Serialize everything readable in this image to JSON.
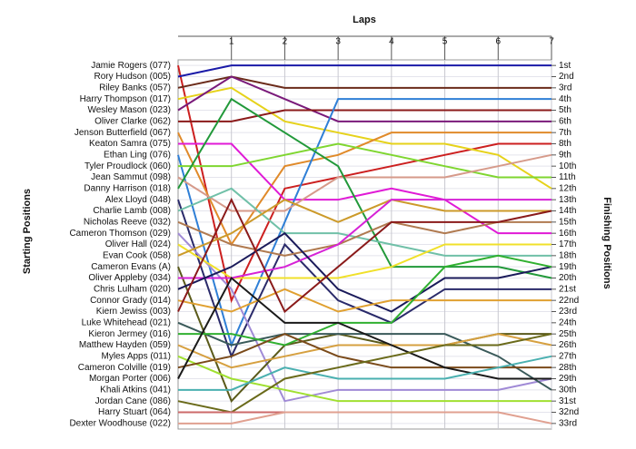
{
  "chart_data": {
    "type": "line",
    "x_label": "Laps",
    "y_label": "Starting Positions",
    "y2_label": "Finishing Positions",
    "x": [
      0,
      1,
      2,
      3,
      4,
      5,
      6,
      7
    ],
    "xlim": [
      0,
      7
    ],
    "xticks": [
      1,
      2,
      3,
      4,
      5,
      6,
      7
    ],
    "ylim": [
      0.5,
      33.5
    ],
    "inverted": true,
    "grid": true,
    "finishing_labels": [
      "1st",
      "2nd",
      "3rd",
      "4th",
      "5th",
      "6th",
      "7th",
      "8th",
      "9th",
      "10th",
      "11th",
      "12th",
      "13th",
      "14th",
      "15th",
      "16th",
      "17th",
      "18th",
      "19th",
      "20th",
      "21st",
      "22nd",
      "23rd",
      "24th",
      "25th",
      "26th",
      "27th",
      "28th",
      "29th",
      "30th",
      "31st",
      "32nd",
      "33rd"
    ],
    "series": [
      {
        "name": "Jamie Rogers (077)",
        "color": "#cc1f1f",
        "values": [
          1,
          22,
          12,
          11,
          10,
          9,
          8,
          8
        ]
      },
      {
        "name": "Rory Hudson (005)",
        "color": "#1a1aa8",
        "values": [
          2,
          1,
          1,
          1,
          1,
          1,
          1,
          1
        ]
      },
      {
        "name": "Riley Banks (057)",
        "color": "#6b2b1a",
        "values": [
          3,
          2,
          3,
          3,
          3,
          3,
          3,
          3
        ]
      },
      {
        "name": "Harry Thompson (017)",
        "color": "#e6d21a",
        "values": [
          4,
          3,
          6,
          7,
          8,
          8,
          9,
          12
        ]
      },
      {
        "name": "Wesley Mason (023)",
        "color": "#7a1a7a",
        "values": [
          5,
          2,
          4,
          6,
          6,
          6,
          6,
          6
        ]
      },
      {
        "name": "Oliver Clarke (062)",
        "color": "#8b1a1a",
        "values": [
          6,
          6,
          5,
          5,
          5,
          5,
          5,
          5
        ]
      },
      {
        "name": "Jenson Butterfield (067)",
        "color": "#e08a2a",
        "values": [
          7,
          17,
          10,
          9,
          7,
          7,
          7,
          7
        ]
      },
      {
        "name": "Keaton Samra (075)",
        "color": "#e01ad6",
        "values": [
          8,
          8,
          13,
          13,
          12,
          13,
          16,
          16
        ]
      },
      {
        "name": "Ethan Ling (076)",
        "color": "#2f7fd6",
        "values": [
          9,
          26,
          15,
          4,
          4,
          4,
          4,
          4
        ]
      },
      {
        "name": "Tyler Proudlock (060)",
        "color": "#7fd630",
        "values": [
          10,
          10,
          9,
          8,
          9,
          10,
          11,
          11
        ]
      },
      {
        "name": "Jean Sammut (098)",
        "color": "#d69a8a",
        "values": [
          11,
          14,
          14,
          11,
          11,
          11,
          10,
          9
        ]
      },
      {
        "name": "Danny Harrison (018)",
        "color": "#22993a",
        "values": [
          12,
          4,
          7,
          10,
          19,
          19,
          19,
          20
        ]
      },
      {
        "name": "Alex Lloyd (048)",
        "color": "#2a2a6a",
        "values": [
          13,
          27,
          17,
          22,
          24,
          21,
          21,
          21
        ]
      },
      {
        "name": "Charlie Lamb (008)",
        "color": "#70c0a8",
        "values": [
          14,
          12,
          16,
          16,
          17,
          18,
          18,
          18
        ]
      },
      {
        "name": "Nicholas Reeve (032)",
        "color": "#b07a50",
        "values": [
          15,
          17,
          18,
          17,
          15,
          16,
          15,
          15
        ]
      },
      {
        "name": "Cameron Thomson (029)",
        "color": "#a08ad6",
        "values": [
          16,
          21,
          31,
          30,
          30,
          30,
          30,
          29
        ]
      },
      {
        "name": "Oliver Hall (024)",
        "color": "#f0e02a",
        "values": [
          17,
          20,
          20,
          20,
          19,
          17,
          17,
          17
        ]
      },
      {
        "name": "Evan Cook (058)",
        "color": "#cc9a2a",
        "values": [
          18,
          16,
          13,
          15,
          13,
          14,
          14,
          14
        ]
      },
      {
        "name": "Cameron Evans (A)",
        "color": "#5a5a1a",
        "values": [
          19,
          31,
          26,
          25,
          26,
          26,
          25,
          25
        ]
      },
      {
        "name": "Oliver Appleby (034)",
        "color": "#d622d6",
        "values": [
          20,
          20,
          19,
          17,
          13,
          13,
          13,
          13
        ]
      },
      {
        "name": "Chris Lulham (020)",
        "color": "#1a1a5a",
        "values": [
          21,
          19,
          16,
          21,
          23,
          20,
          20,
          19
        ]
      },
      {
        "name": "Connor Grady (014)",
        "color": "#e0a030",
        "values": [
          22,
          23,
          21,
          23,
          22,
          22,
          22,
          22
        ]
      },
      {
        "name": "Kiern Jewiss (003)",
        "color": "#8a1a1a",
        "values": [
          23,
          13,
          23,
          19,
          15,
          15,
          15,
          14
        ]
      },
      {
        "name": "Luke Whitehead (021)",
        "color": "#3a5a5a",
        "values": [
          24,
          26,
          25,
          25,
          25,
          25,
          27,
          30
        ]
      },
      {
        "name": "Kieron Jermey (016)",
        "color": "#30b030",
        "values": [
          25,
          25,
          26,
          24,
          24,
          19,
          18,
          19
        ]
      },
      {
        "name": "Matthew Hayden (059)",
        "color": "#d6a040",
        "values": [
          26,
          28,
          27,
          26,
          26,
          26,
          25,
          26
        ]
      },
      {
        "name": "Myles Apps (011)",
        "color": "#a0e030",
        "values": [
          27,
          29,
          30,
          31,
          31,
          31,
          31,
          31
        ]
      },
      {
        "name": "Cameron Colville (019)",
        "color": "#7a4a1a",
        "values": [
          28,
          27,
          25,
          27,
          28,
          28,
          28,
          28
        ]
      },
      {
        "name": "Morgan Porter (006)",
        "color": "#1a1a1a",
        "values": [
          29,
          20,
          24,
          24,
          26,
          28,
          29,
          29
        ]
      },
      {
        "name": "Khali Atkins (041)",
        "color": "#4ab0b0",
        "values": [
          30,
          30,
          28,
          29,
          29,
          29,
          28,
          27
        ]
      },
      {
        "name": "Jordan Cane (086)",
        "color": "#6a6a1a",
        "values": [
          31,
          32,
          29,
          28,
          27,
          26,
          26,
          25
        ]
      },
      {
        "name": "Harry Stuart (064)",
        "color": "#cc6a6a",
        "values": [
          32,
          32,
          32,
          32,
          32,
          32,
          32,
          null
        ]
      },
      {
        "name": "Dexter Woodhouse (022)",
        "color": "#e0a090",
        "values": [
          33,
          33,
          32,
          32,
          32,
          32,
          32,
          33
        ]
      }
    ]
  }
}
